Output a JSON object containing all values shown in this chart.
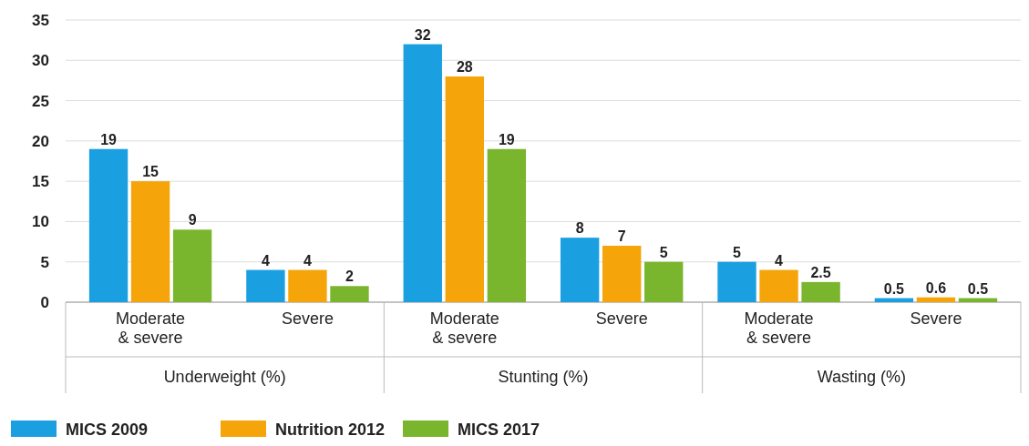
{
  "chart_data": {
    "type": "bar",
    "categories": [
      "Moderate & severe",
      "Severe",
      "Moderate & severe",
      "Severe",
      "Moderate & severe",
      "Severe"
    ],
    "series": [
      {
        "name": "MICS 2009",
        "color": "#1a9fe0",
        "values": [
          19,
          4,
          32,
          8,
          5,
          0.5
        ]
      },
      {
        "name": "Nutrition 2012",
        "color": "#f5a50a",
        "values": [
          15,
          4,
          28,
          7,
          4,
          0.6
        ]
      },
      {
        "name": "MICS 2017",
        "color": "#7ab52e",
        "values": [
          9,
          2,
          19,
          5,
          2.5,
          0.5
        ]
      }
    ],
    "ylim": [
      0,
      35
    ],
    "yticks": [
      0,
      5,
      10,
      15,
      20,
      25,
      30,
      35
    ],
    "grid": "y",
    "data_labels": true,
    "legend": "bottom left",
    "annotations": [
      "Underweight (%)",
      "Stunting (%)",
      "Wasting (%)"
    ]
  }
}
